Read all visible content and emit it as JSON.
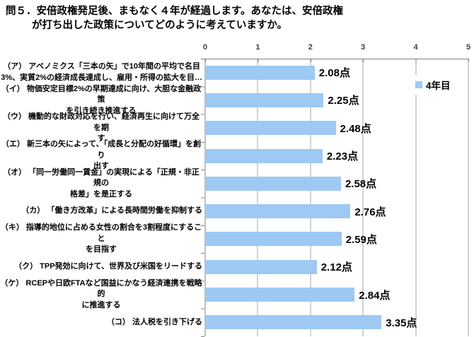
{
  "title": {
    "line1": "問５．安倍政権発足後、まもなく４年が経過します。あなたは、安倍政権",
    "line2": "が打ち出した政策についてどのように考えていますか。"
  },
  "chart_data": {
    "type": "bar",
    "orientation": "horizontal",
    "title": "問５．安倍政権発足後、まもなく４年が経過します。あなたは、安倍政権が打ち出した政策についてどのように考えていますか。",
    "unit": "点",
    "xlim": [
      0,
      5
    ],
    "x_ticks": [
      "0",
      "1",
      "2",
      "3",
      "4",
      "5"
    ],
    "grid": true,
    "legend_position": "right-inside",
    "categories": [
      "（ア） アベノミクス「三本の矢」で10年間の平均で名目\n3%、実質2%の経済成長達成し、雇用・所得の拡大を目…",
      "（イ） 物価安定目標2%の早期達成に向け、大胆な金融政策\nを引き続き推進する",
      "（ウ） 機動的な財政対応を行い、経済再生に向けて万全を期\nす",
      "（エ） 新三本の矢によって、「成長と分配の好循環」を創り\n出す",
      "（オ） 「同一労働同一賃金」の実現による「正規・非正規の\n格差」を是正する",
      "（カ） 「働き方改革」による長時間労働を抑制する",
      "（キ） 指導的地位に占める女性の割合を3割程度にすること\nを目指す",
      "（ク） TPP発効に向けて、世界及び米国をリードする",
      "（ケ） RCEPや日欧FTAなど国益にかなう経済連携を戦略的\nに推進する",
      "（コ） 法人税を引き下げる"
    ],
    "series": [
      {
        "name": "4年目",
        "values": [
          2.08,
          2.25,
          2.48,
          2.23,
          2.58,
          2.76,
          2.59,
          2.12,
          2.84,
          3.35
        ],
        "value_labels": [
          "2.08点",
          "2.25点",
          "2.48点",
          "2.23点",
          "2.58点",
          "2.76点",
          "2.59点",
          "2.12点",
          "2.84点",
          "3.35点"
        ]
      }
    ],
    "colors": {
      "bar": "#9dc9f3",
      "gridline": "#a6a6a6",
      "axis": "#808080",
      "text": "#000000"
    }
  }
}
